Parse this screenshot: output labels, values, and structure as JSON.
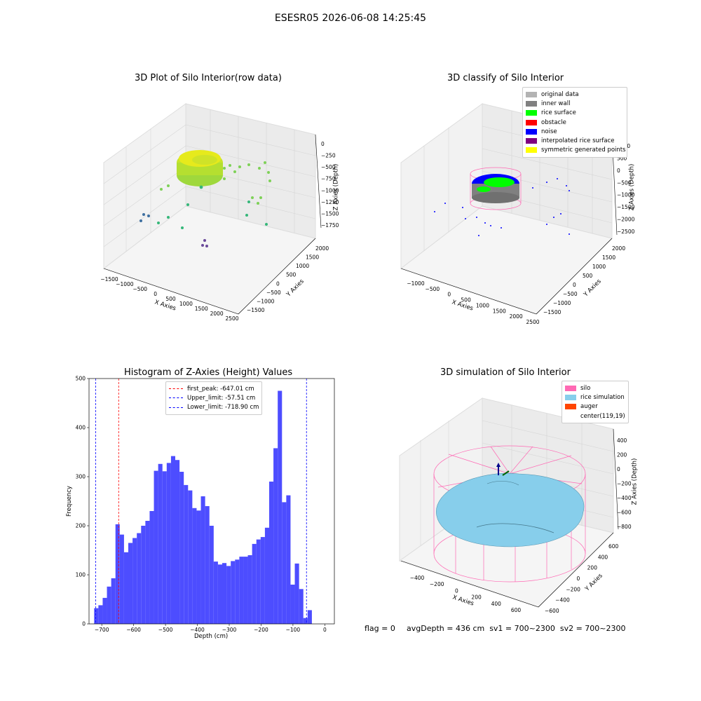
{
  "suptitle": "ESESR05 2026-06-08 14:25:45",
  "panels": {
    "raw": {
      "title": "3D Plot of Silo Interior(row data)",
      "xlabel": "X Axies",
      "ylabel": "Y Axies",
      "zlabel": "Z Axies (Depth)",
      "xticks": [
        "−1500",
        "−1000",
        "−500",
        "0",
        "500",
        "1000",
        "1500",
        "2000",
        "2500"
      ],
      "yticks": [
        "2000",
        "1500",
        "1000",
        "500",
        "0",
        "−500",
        "−1000",
        "−1500"
      ],
      "zticks": [
        "0",
        "−250",
        "−500",
        "−750",
        "−1000",
        "−1250",
        "−1500",
        "−1750"
      ]
    },
    "classify": {
      "title": "3D classify of Silo Interior",
      "xlabel": "X Axies",
      "ylabel": "Y Axies",
      "zlabel": "Z Axies (Depth)",
      "xticks": [
        "−1000",
        "−500",
        "0",
        "500",
        "1000",
        "1500",
        "2000",
        "2500"
      ],
      "yticks": [
        "2000",
        "1500",
        "1000",
        "500",
        "0",
        "−500",
        "−1000",
        "−1500"
      ],
      "zticks": [
        "1000",
        "500",
        "0",
        "−500",
        "−1000",
        "−1500",
        "−2000",
        "−2500"
      ],
      "legend": [
        {
          "label": "original data",
          "color": "#b3b3b3"
        },
        {
          "label": "inner wall",
          "color": "#808080"
        },
        {
          "label": "rice surface",
          "color": "#00ff00"
        },
        {
          "label": "obstacle",
          "color": "#ff0000"
        },
        {
          "label": "noise",
          "color": "#0000ff"
        },
        {
          "label": "interpolated rice surface",
          "color": "#800080"
        },
        {
          "label": "symmetric generated points",
          "color": "#ffff00"
        }
      ]
    },
    "simulation": {
      "title": "3D simulation of Silo Interior",
      "xlabel": "X Axies",
      "ylabel": "Y Axies",
      "zlabel": "Z Axies (Depth)",
      "xticks": [
        "−400",
        "−200",
        "0",
        "200",
        "400",
        "600"
      ],
      "yticks": [
        "600",
        "400",
        "200",
        "0",
        "−200",
        "−400",
        "−600"
      ],
      "zticks": [
        "400",
        "200",
        "0",
        "−200",
        "−400",
        "−600",
        "−800"
      ],
      "legend": [
        {
          "label": "silo",
          "color": "#ff69b4"
        },
        {
          "label": "rice simulation",
          "color": "#87ceeb"
        },
        {
          "label": "auger",
          "color": "#ff4500"
        },
        {
          "label": "center(119,19)",
          "color": "#ffffff"
        }
      ]
    }
  },
  "footer": {
    "flag": "flag = 0",
    "avg": "avgDepth = 436 cm  sv1 = 700~2300  sv2 = 700~2300"
  },
  "chart_data": {
    "type": "bar",
    "title": "Histogram of Z-Axies (Height) Values",
    "xlabel": "Depth (cm)",
    "ylabel": "Frequency",
    "xlim": [
      -740,
      30
    ],
    "ylim": [
      0,
      500
    ],
    "xticks": [
      -700,
      -600,
      -500,
      -400,
      -300,
      -200,
      -100,
      0
    ],
    "yticks": [
      0,
      100,
      200,
      300,
      400,
      500
    ],
    "bin_width": 13.4,
    "bin_starts": [
      -724,
      -710.6,
      -697.2,
      -683.8,
      -670.4,
      -657,
      -643.6,
      -630.2,
      -616.8,
      -603.4,
      -590,
      -576.6,
      -563.2,
      -549.8,
      -536.4,
      -523,
      -509.6,
      -496.2,
      -482.8,
      -469.4,
      -456,
      -442.6,
      -429.2,
      -415.8,
      -402.4,
      -389,
      -375.6,
      -362.2,
      -348.8,
      -335.4,
      -322,
      -308.6,
      -295.2,
      -281.8,
      -268.4,
      -255,
      -241.6,
      -228.2,
      -214.8,
      -201.4,
      -188,
      -174.6,
      -161.2,
      -147.8,
      -134.4,
      -121,
      -107.6,
      -94.2,
      -80.8,
      -67.4,
      -54,
      -40.6,
      -27.2,
      -13.8
    ],
    "values": [
      32,
      38,
      53,
      76,
      93,
      203,
      182,
      146,
      165,
      175,
      185,
      200,
      210,
      230,
      312,
      326,
      311,
      328,
      342,
      334,
      310,
      283,
      272,
      236,
      231,
      260,
      240,
      200,
      127,
      121,
      124,
      118,
      128,
      131,
      137,
      137,
      140,
      163,
      172,
      177,
      196,
      290,
      358,
      475,
      248,
      262,
      80,
      123,
      71,
      12,
      28,
      0,
      0,
      0
    ],
    "lines": [
      {
        "label": "first_peak: -647.01 cm",
        "x": -647.01,
        "color": "#ff0000"
      },
      {
        "label": "Upper_limit: -57.51 cm",
        "x": -57.51,
        "color": "#0000ff"
      },
      {
        "label": "Lower_limit: -718.90 cm",
        "x": -718.9,
        "color": "#0000ff"
      }
    ],
    "bar_color": "#4d4dff"
  }
}
